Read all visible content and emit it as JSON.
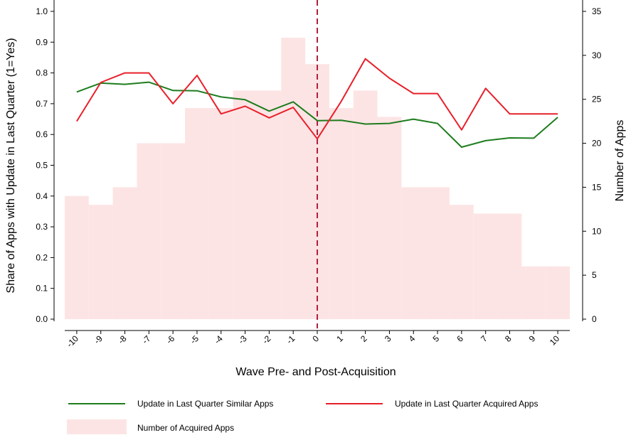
{
  "chart_data": {
    "type": "bar+line",
    "title": "",
    "xlabel": "Wave Pre- and Post-Acquisition",
    "ylabel": "Share of Apps with Update in Last Quarter (1=Yes)",
    "y2label": "Number of Apps",
    "x": [
      -10,
      -9,
      -8,
      -7,
      -6,
      -5,
      -4,
      -3,
      -2,
      -1,
      0,
      1,
      2,
      3,
      4,
      5,
      6,
      7,
      8,
      9,
      10
    ],
    "x_tick_labels": [
      "-10",
      "-9",
      "-8",
      "-7",
      "-6",
      "-5",
      "-4",
      "-3",
      "-2",
      "-1",
      "0",
      "1",
      "2",
      "3",
      "4",
      "5",
      "6",
      "7",
      "8",
      "9",
      "10"
    ],
    "ylim": [
      0,
      1
    ],
    "y_ticks": [
      "0.0",
      "0.1",
      "0.2",
      "0.3",
      "0.4",
      "0.5",
      "0.6",
      "0.7",
      "0.8",
      "0.9",
      "1.0"
    ],
    "y2lim": [
      0,
      35
    ],
    "y2_ticks": [
      "0",
      "5",
      "10",
      "15",
      "20",
      "25",
      "30",
      "35"
    ],
    "event_line_x": 0,
    "grid": false,
    "legend_position": "bottom",
    "bars": {
      "name": "Number of Acquired Apps",
      "axis": "right",
      "color": "#fde4e4",
      "values": [
        14,
        13,
        15,
        20,
        20,
        24,
        24,
        26,
        26,
        32,
        29,
        24,
        26,
        23,
        15,
        15,
        13,
        12,
        12,
        6,
        6
      ]
    },
    "series": [
      {
        "name": "Update in Last Quarter Similar Apps",
        "axis": "left",
        "color": "#1e7d1e",
        "values": [
          0.738,
          0.767,
          0.763,
          0.77,
          0.743,
          0.742,
          0.722,
          0.713,
          0.676,
          0.706,
          0.645,
          0.646,
          0.634,
          0.636,
          0.65,
          0.636,
          0.559,
          0.58,
          0.589,
          0.588,
          0.656
        ]
      },
      {
        "name": "Update in Last Quarter Acquired Apps",
        "axis": "left",
        "color": "#e8202a",
        "values": [
          0.643,
          0.769,
          0.8,
          0.8,
          0.7,
          0.792,
          0.667,
          0.692,
          0.654,
          0.688,
          0.586,
          0.708,
          0.846,
          0.783,
          0.733,
          0.733,
          0.615,
          0.75,
          0.667,
          0.667,
          0.667
        ]
      }
    ]
  }
}
